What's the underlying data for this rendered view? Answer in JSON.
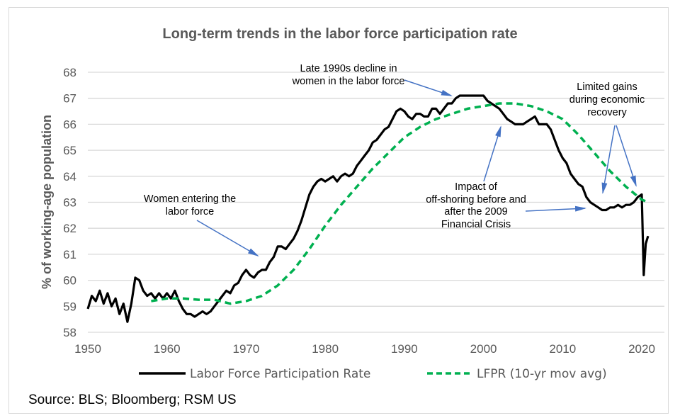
{
  "chart_data": {
    "type": "line",
    "title": "Long-term trends in the labor force participation rate",
    "xlabel": "",
    "ylabel": "% of working-age population",
    "xlim": [
      1950,
      2020
    ],
    "ylim": [
      58,
      68
    ],
    "x_ticks": [
      "1950",
      "1960",
      "1970",
      "1980",
      "1990",
      "2000",
      "2010",
      "2020"
    ],
    "y_ticks": [
      "58",
      "59",
      "60",
      "61",
      "62",
      "63",
      "64",
      "65",
      "66",
      "67",
      "68"
    ],
    "grid": "horizontal",
    "legend": "bottom",
    "colors": {
      "lfpr": "#000000",
      "moving_avg": "#00B050",
      "arrow": "#4472C4",
      "title": "#595959"
    },
    "series": [
      {
        "name": "Labor Force Participation Rate",
        "style": "solid",
        "x": [
          1950,
          1950.5,
          1951,
          1951.5,
          1952,
          1952.5,
          1953,
          1953.5,
          1954,
          1954.5,
          1955,
          1955.5,
          1956,
          1956.5,
          1957,
          1957.5,
          1958,
          1958.5,
          1959,
          1959.5,
          1960,
          1960.5,
          1961,
          1961.5,
          1962,
          1962.5,
          1963,
          1963.5,
          1964,
          1964.5,
          1965,
          1965.5,
          1966,
          1966.5,
          1967,
          1967.5,
          1968,
          1968.5,
          1969,
          1969.5,
          1970,
          1970.5,
          1971,
          1971.5,
          1972,
          1972.5,
          1973,
          1973.5,
          1974,
          1974.5,
          1975,
          1975.5,
          1976,
          1976.5,
          1977,
          1977.5,
          1978,
          1978.5,
          1979,
          1979.5,
          1980,
          1980.5,
          1981,
          1981.5,
          1982,
          1982.5,
          1983,
          1983.5,
          1984,
          1984.5,
          1985,
          1985.5,
          1986,
          1986.5,
          1987,
          1987.5,
          1988,
          1988.5,
          1989,
          1989.5,
          1990,
          1990.5,
          1991,
          1991.5,
          1992,
          1992.5,
          1993,
          1993.5,
          1994,
          1994.5,
          1995,
          1995.5,
          1996,
          1996.5,
          1997,
          1997.5,
          1998,
          1998.5,
          1999,
          1999.5,
          2000,
          2000.5,
          2001,
          2001.5,
          2002,
          2002.5,
          2003,
          2003.5,
          2004,
          2004.5,
          2005,
          2005.5,
          2006,
          2006.5,
          2007,
          2007.5,
          2008,
          2008.5,
          2009,
          2009.5,
          2010,
          2010.5,
          2011,
          2011.5,
          2012,
          2012.5,
          2013,
          2013.5,
          2014,
          2014.5,
          2015,
          2015.5,
          2016,
          2016.5,
          2017,
          2017.5,
          2018,
          2018.5,
          2019,
          2019.5,
          2020,
          2020.25,
          2020.5,
          2020.8
        ],
        "values": [
          58.9,
          59.4,
          59.2,
          59.6,
          59.1,
          59.5,
          59.0,
          59.3,
          58.7,
          59.1,
          58.4,
          59.1,
          60.1,
          60.0,
          59.6,
          59.4,
          59.5,
          59.3,
          59.5,
          59.3,
          59.5,
          59.3,
          59.6,
          59.2,
          58.9,
          58.7,
          58.7,
          58.6,
          58.7,
          58.8,
          58.7,
          58.8,
          59.0,
          59.2,
          59.4,
          59.6,
          59.5,
          59.8,
          59.9,
          60.2,
          60.4,
          60.2,
          60.1,
          60.3,
          60.4,
          60.4,
          60.7,
          60.9,
          61.3,
          61.3,
          61.2,
          61.4,
          61.6,
          61.9,
          62.3,
          62.8,
          63.3,
          63.6,
          63.8,
          63.9,
          63.8,
          63.9,
          64.0,
          63.8,
          64.0,
          64.1,
          64.0,
          64.1,
          64.4,
          64.6,
          64.8,
          65.0,
          65.3,
          65.4,
          65.6,
          65.8,
          65.9,
          66.2,
          66.5,
          66.6,
          66.5,
          66.3,
          66.2,
          66.4,
          66.4,
          66.3,
          66.3,
          66.6,
          66.6,
          66.4,
          66.6,
          66.8,
          66.8,
          67.0,
          67.1,
          67.1,
          67.1,
          67.1,
          67.1,
          67.1,
          67.1,
          66.9,
          66.8,
          66.7,
          66.6,
          66.4,
          66.2,
          66.1,
          66.0,
          66.0,
          66.0,
          66.1,
          66.2,
          66.3,
          66.0,
          66.0,
          66.0,
          65.8,
          65.4,
          65.0,
          64.7,
          64.5,
          64.1,
          63.9,
          63.7,
          63.6,
          63.2,
          63.0,
          62.9,
          62.8,
          62.7,
          62.7,
          62.8,
          62.8,
          62.9,
          62.8,
          62.9,
          62.9,
          63.0,
          63.2,
          63.3,
          60.2,
          61.4,
          61.7
        ]
      },
      {
        "name": "LFPR (10-yr mov avg)",
        "style": "dashed",
        "x": [
          1958,
          1960,
          1962,
          1964,
          1966,
          1968,
          1970,
          1972,
          1974,
          1976,
          1978,
          1980,
          1982,
          1984,
          1986,
          1988,
          1990,
          1992,
          1994,
          1996,
          1998,
          2000,
          2002,
          2004,
          2006,
          2008,
          2010,
          2012,
          2014,
          2016,
          2018,
          2020,
          2020.8
        ],
        "values": [
          59.2,
          59.3,
          59.3,
          59.25,
          59.25,
          59.1,
          59.2,
          59.4,
          59.8,
          60.4,
          61.2,
          62.1,
          62.9,
          63.6,
          64.3,
          64.9,
          65.5,
          65.9,
          66.2,
          66.4,
          66.6,
          66.7,
          66.8,
          66.8,
          66.7,
          66.5,
          66.2,
          65.6,
          64.9,
          64.2,
          63.6,
          63.1,
          63.0
        ]
      }
    ],
    "annotations": [
      {
        "lines": [
          "Women entering the",
          "labor force"
        ]
      },
      {
        "lines": [
          "Late 1990s decline in",
          "women in the labor force"
        ]
      },
      {
        "lines": [
          "Impact of",
          "off-shoring before and",
          "after the 2009",
          "Financial Crisis"
        ]
      },
      {
        "lines": [
          "Limited gains",
          "during economic",
          "recovery"
        ]
      }
    ],
    "source": "Source: BLS; Bloomberg; RSM US"
  }
}
